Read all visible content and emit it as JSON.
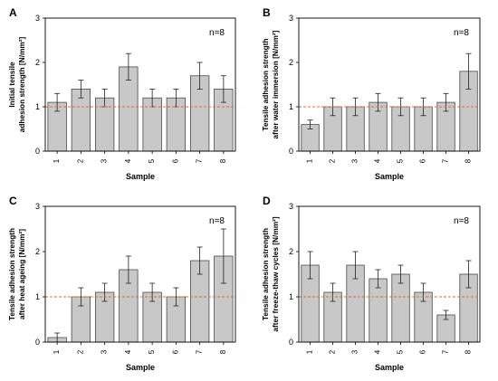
{
  "colors": {
    "bar": "#c8c8c8",
    "bar_stroke": "#4a4a4a",
    "reference_line": "#e06a3a",
    "axis": "#000000"
  },
  "chart_data": [
    {
      "panel": "A",
      "type": "bar",
      "categories": [
        "1",
        "2",
        "3",
        "4",
        "5",
        "6",
        "7",
        "8"
      ],
      "values": [
        1.1,
        1.4,
        1.2,
        1.9,
        1.2,
        1.2,
        1.7,
        1.4
      ],
      "errors": [
        0.2,
        0.2,
        0.2,
        0.3,
        0.2,
        0.2,
        0.3,
        0.3
      ],
      "xlabel": "Sample",
      "ylabel_lines": [
        "Initial tensile",
        "adhesion strength [N/mm²]"
      ],
      "ylim": [
        0,
        3
      ],
      "yticks": [
        "0",
        "1",
        "2",
        "3"
      ],
      "annotation": "n=8",
      "reference_line": 1,
      "grid": false
    },
    {
      "panel": "B",
      "type": "bar",
      "categories": [
        "1",
        "2",
        "3",
        "4",
        "5",
        "6",
        "7",
        "8"
      ],
      "values": [
        0.6,
        1.0,
        1.0,
        1.1,
        1.0,
        1.0,
        1.1,
        1.8
      ],
      "errors": [
        0.1,
        0.2,
        0.2,
        0.2,
        0.2,
        0.2,
        0.2,
        0.4
      ],
      "xlabel": "Sample",
      "ylabel_lines": [
        "Tensile adhesion strength",
        "after water immersion [N/mm²]"
      ],
      "ylim": [
        0,
        3
      ],
      "yticks": [
        "0",
        "1",
        "2",
        "3"
      ],
      "annotation": "n=8",
      "reference_line": 1,
      "grid": false
    },
    {
      "panel": "C",
      "type": "bar",
      "categories": [
        "1",
        "2",
        "3",
        "4",
        "5",
        "6",
        "7",
        "8"
      ],
      "values": [
        0.1,
        1.0,
        1.1,
        1.6,
        1.1,
        1.0,
        1.8,
        1.9
      ],
      "errors": [
        0.1,
        0.2,
        0.2,
        0.3,
        0.2,
        0.2,
        0.3,
        0.6
      ],
      "xlabel": "Sample",
      "ylabel_lines": [
        "Tensile adhesion strength",
        "after heat ageing [N/mm²]"
      ],
      "ylim": [
        0,
        3
      ],
      "yticks": [
        "0",
        "1",
        "2",
        "3"
      ],
      "annotation": "n=8",
      "reference_line": 1,
      "grid": false
    },
    {
      "panel": "D",
      "type": "bar",
      "categories": [
        "1",
        "2",
        "3",
        "4",
        "5",
        "6",
        "7",
        "8"
      ],
      "values": [
        1.7,
        1.1,
        1.7,
        1.4,
        1.5,
        1.1,
        0.6,
        1.5
      ],
      "errors": [
        0.3,
        0.2,
        0.3,
        0.2,
        0.2,
        0.2,
        0.1,
        0.3
      ],
      "xlabel": "Sample",
      "ylabel_lines": [
        "Tensile adhesion strength",
        "after freeze-thaw cycles [N/mm²]"
      ],
      "ylim": [
        0,
        3
      ],
      "yticks": [
        "0",
        "1",
        "2",
        "3"
      ],
      "annotation": "n=8",
      "reference_line": 1,
      "grid": false
    }
  ]
}
